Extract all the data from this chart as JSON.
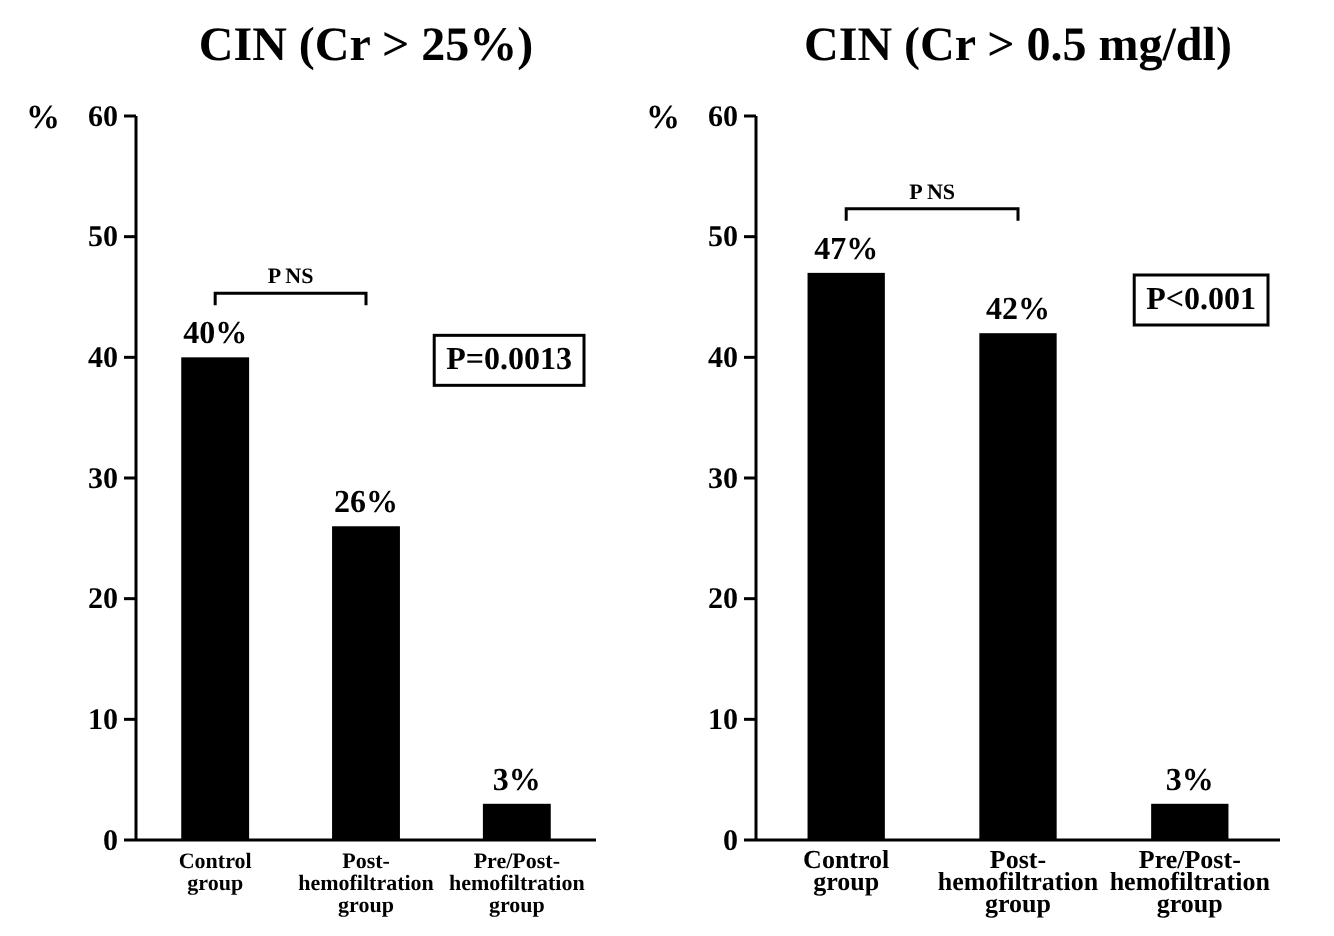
{
  "chart_data": [
    {
      "type": "bar",
      "title": "CIN (Cr > 25%)",
      "ylabel": "%",
      "categories": [
        "Control group",
        "Post-hemofiltration group",
        "Pre/Post-hemofiltration group"
      ],
      "values": [
        40,
        26,
        3
      ],
      "value_labels": [
        "40%",
        "26%",
        "3%"
      ],
      "color": "#000000",
      "ylim": [
        0,
        60
      ],
      "yticks": [
        0,
        10,
        20,
        30,
        40,
        50,
        60
      ],
      "annotations": [
        "P NS",
        "P=0.0013"
      ],
      "grid": false
    },
    {
      "type": "bar",
      "title": "CIN (Cr > 0.5 mg/dl)",
      "ylabel": "%",
      "categories": [
        "Control group",
        "Post-hemofiltration group",
        "Pre/Post-hemofiltration group"
      ],
      "values": [
        47,
        42,
        3
      ],
      "value_labels": [
        "47%",
        "42%",
        "3%"
      ],
      "color": "#000000",
      "ylim": [
        0,
        60
      ],
      "yticks": [
        0,
        10,
        20,
        30,
        40,
        50,
        60
      ],
      "annotations": [
        "P NS",
        "P<0.001"
      ],
      "grid": false
    }
  ]
}
